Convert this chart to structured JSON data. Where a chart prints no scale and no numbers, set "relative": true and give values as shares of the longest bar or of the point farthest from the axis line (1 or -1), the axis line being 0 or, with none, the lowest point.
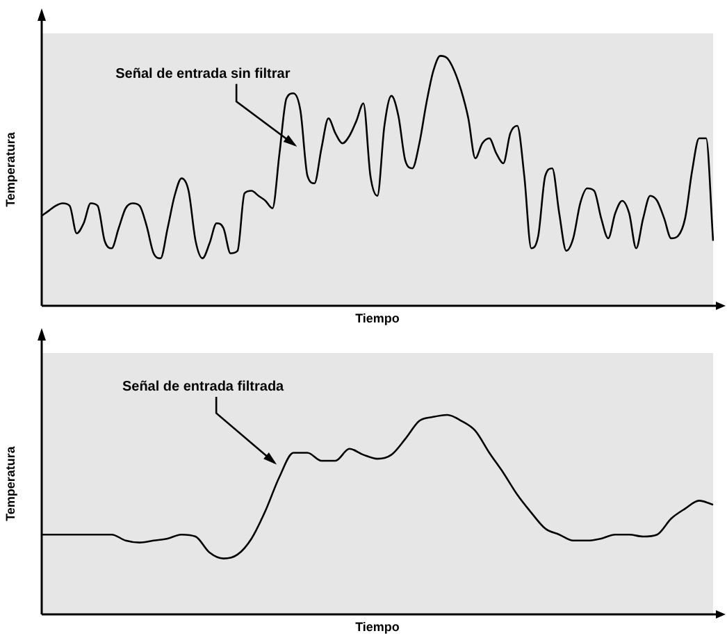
{
  "chart_data": [
    {
      "type": "line",
      "relative": true,
      "xlabel": "Tiempo",
      "ylabel": "Temperatura",
      "annotations": [
        "Señal de entrada sin filtrar"
      ],
      "legend": false,
      "marker": "none",
      "line_style": "solid",
      "categories": [
        null,
        null,
        null,
        null,
        null,
        null,
        null,
        null,
        null,
        null,
        null,
        null,
        null,
        null,
        null,
        null,
        null,
        null,
        null,
        null,
        null,
        null,
        null,
        null,
        null,
        null,
        null,
        null,
        null,
        null,
        null,
        null,
        null,
        null,
        null,
        null,
        null,
        null,
        null,
        null,
        null,
        null,
        null,
        null,
        null,
        null,
        null,
        null,
        null,
        null,
        null,
        null,
        null,
        null,
        null,
        null,
        null,
        null,
        null,
        null,
        null,
        null,
        null,
        null,
        null,
        null,
        null,
        null,
        null,
        null,
        null,
        null,
        null,
        null,
        null,
        null,
        null,
        null,
        null,
        null,
        null,
        null,
        null,
        null,
        null,
        null,
        null,
        null,
        null,
        null,
        null,
        null,
        null,
        null,
        null,
        null,
        null
      ],
      "series": [
        {
          "color": "#000000",
          "values": [
            0.36,
            0.38,
            0.4,
            0.41,
            0.4,
            0.29,
            0.33,
            0.41,
            0.4,
            0.26,
            0.23,
            0.31,
            0.39,
            0.41,
            0.4,
            0.32,
            0.21,
            0.19,
            0.31,
            0.44,
            0.51,
            0.46,
            0.26,
            0.19,
            0.25,
            0.33,
            0.31,
            0.21,
            0.22,
            0.45,
            0.46,
            0.44,
            0.42,
            0.39,
            0.61,
            0.83,
            0.85,
            0.78,
            0.52,
            0.49,
            0.63,
            0.75,
            0.69,
            0.65,
            0.68,
            0.74,
            0.81,
            0.52,
            0.44,
            0.72,
            0.84,
            0.76,
            0.58,
            0.55,
            0.65,
            0.81,
            0.94,
            1.0,
            0.99,
            0.94,
            0.86,
            0.75,
            0.59,
            0.65,
            0.67,
            0.61,
            0.57,
            0.69,
            0.72,
            0.52,
            0.23,
            0.28,
            0.52,
            0.55,
            0.37,
            0.22,
            0.27,
            0.41,
            0.47,
            0.46,
            0.35,
            0.27,
            0.37,
            0.42,
            0.37,
            0.23,
            0.35,
            0.44,
            0.42,
            0.35,
            0.27,
            0.28,
            0.35,
            0.54,
            0.67,
            0.67,
            0.26
          ]
        }
      ]
    },
    {
      "type": "line",
      "relative": true,
      "xlabel": "Tiempo",
      "ylabel": "Temperatura",
      "annotations": [
        "Señal de entrada filtrada"
      ],
      "legend": false,
      "marker": "none",
      "line_style": "solid",
      "categories": [
        null,
        null,
        null,
        null,
        null,
        null,
        null,
        null,
        null,
        null,
        null,
        null,
        null,
        null,
        null,
        null,
        null,
        null,
        null,
        null,
        null,
        null,
        null,
        null,
        null,
        null,
        null,
        null,
        null,
        null,
        null,
        null,
        null,
        null,
        null,
        null,
        null,
        null,
        null,
        null,
        null,
        null,
        null,
        null,
        null,
        null,
        null,
        null,
        null
      ],
      "series": [
        {
          "color": "#000000",
          "values": [
            0.4,
            0.4,
            0.4,
            0.4,
            0.4,
            0.4,
            0.37,
            0.36,
            0.37,
            0.38,
            0.4,
            0.39,
            0.31,
            0.28,
            0.3,
            0.38,
            0.52,
            0.69,
            0.81,
            0.81,
            0.77,
            0.77,
            0.83,
            0.8,
            0.78,
            0.8,
            0.88,
            0.97,
            0.99,
            1.0,
            0.97,
            0.92,
            0.81,
            0.71,
            0.6,
            0.51,
            0.43,
            0.4,
            0.37,
            0.37,
            0.38,
            0.4,
            0.4,
            0.39,
            0.4,
            0.48,
            0.53,
            0.57,
            0.55
          ]
        }
      ]
    }
  ]
}
